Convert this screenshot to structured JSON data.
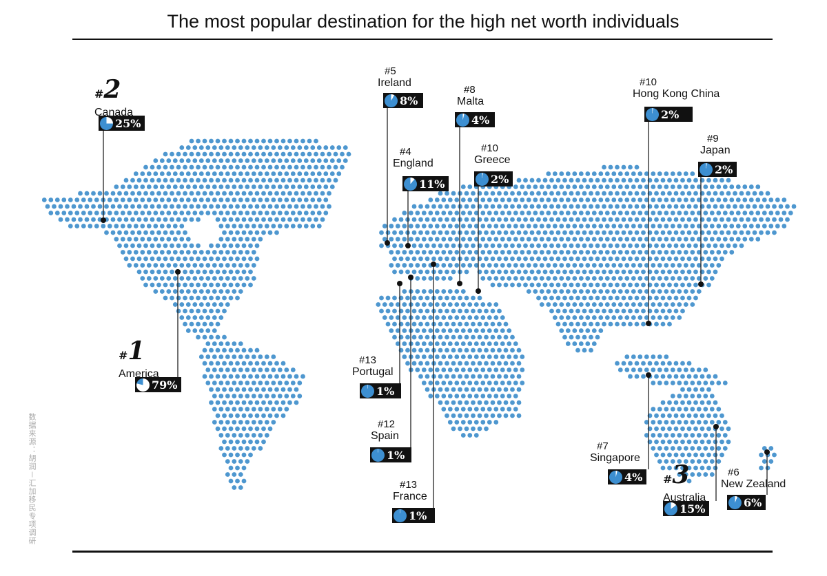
{
  "title": "The most popular destination for the  high net worth individuals",
  "source_note": "数据来源：胡润－汇加移民专项调研",
  "colors": {
    "dot": "#4e97cf",
    "badge": "#111111",
    "pie_fill": "#3d8fd1"
  },
  "destinations": [
    {
      "rank": "#1",
      "name": "America",
      "percent": 79,
      "percent_label": "79%",
      "big": true
    },
    {
      "rank": "#2",
      "name": "Canada",
      "percent": 25,
      "percent_label": "25%",
      "big": true
    },
    {
      "rank": "#3",
      "name": "Australia",
      "percent": 15,
      "percent_label": "15%",
      "big": true
    },
    {
      "rank": "#4",
      "name": "England",
      "percent": 11,
      "percent_label": "11%",
      "big": false
    },
    {
      "rank": "#5",
      "name": "Ireland",
      "percent": 8,
      "percent_label": "8%",
      "big": false
    },
    {
      "rank": "#6",
      "name": "New Zealand",
      "percent": 6,
      "percent_label": "6%",
      "big": false
    },
    {
      "rank": "#7",
      "name": "Singapore",
      "percent": 4,
      "percent_label": "4%",
      "big": false
    },
    {
      "rank": "#8",
      "name": "Malta",
      "percent": 4,
      "percent_label": "4%",
      "big": false
    },
    {
      "rank": "#9",
      "name": "Japan",
      "percent": 2,
      "percent_label": "2%",
      "big": false
    },
    {
      "rank": "#10",
      "name": "Greece",
      "percent": 2,
      "percent_label": "2%",
      "big": false
    },
    {
      "rank": "#10",
      "name": "Hong Kong China",
      "percent": 2,
      "percent_label": "2%",
      "big": false
    },
    {
      "rank": "#12",
      "name": "Spain",
      "percent": 1,
      "percent_label": "1%",
      "big": false
    },
    {
      "rank": "#13",
      "name": "Portugal",
      "percent": 1,
      "percent_label": "1%",
      "big": false
    },
    {
      "rank": "#13",
      "name": "France",
      "percent": 1,
      "percent_label": "1%",
      "big": false
    }
  ]
}
